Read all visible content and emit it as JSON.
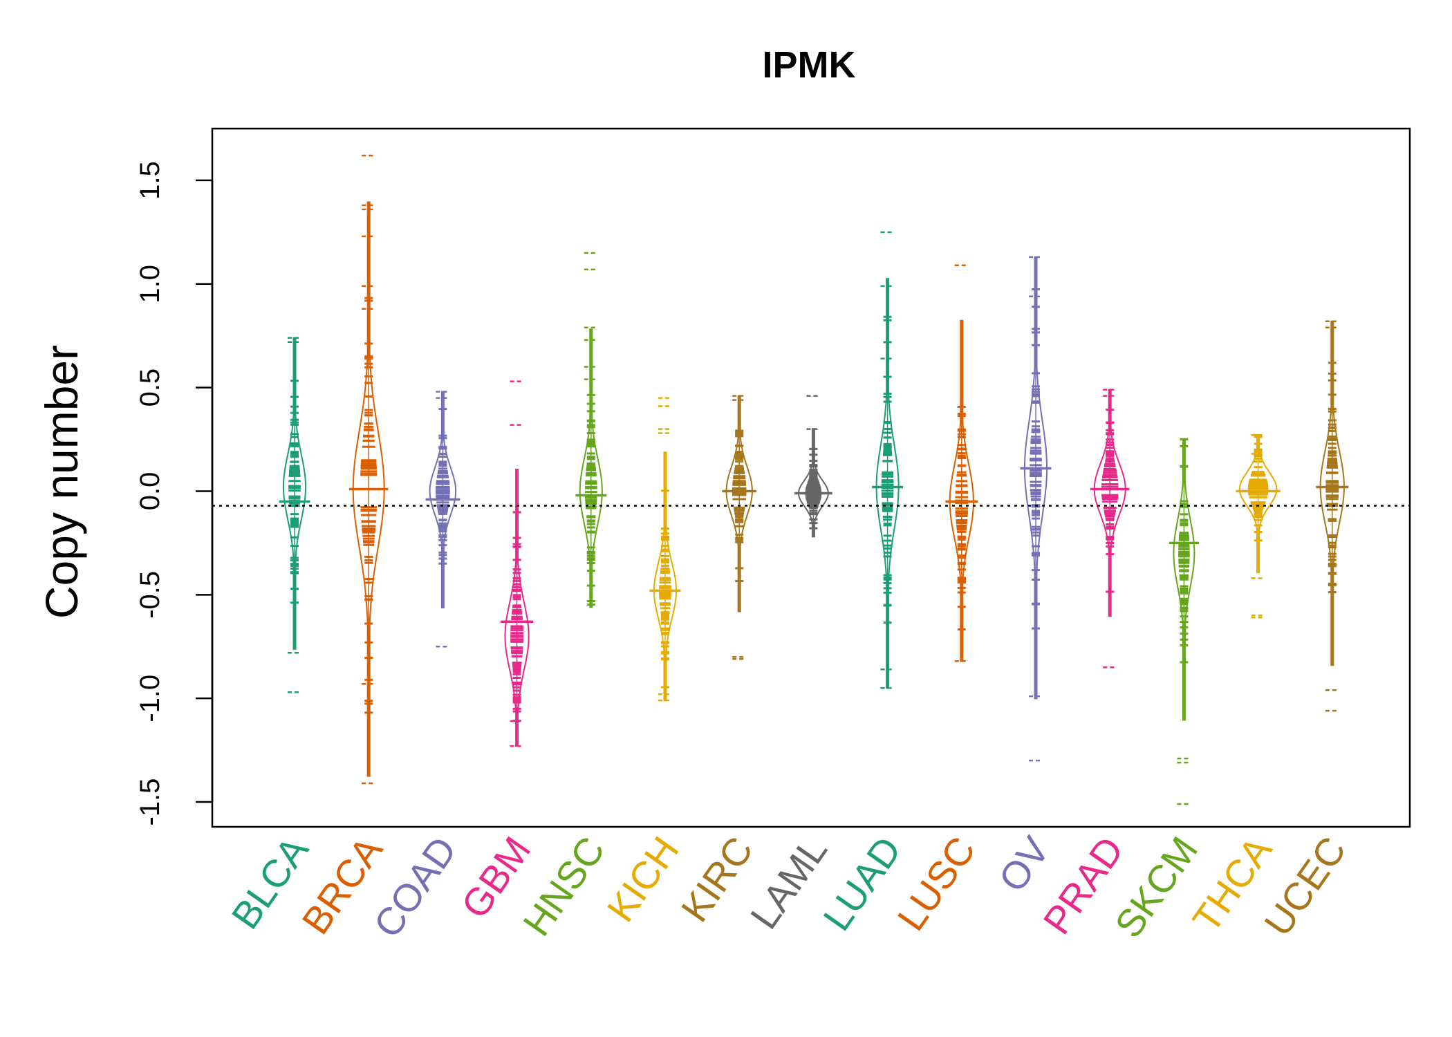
{
  "chart_data": {
    "type": "beanplot",
    "title": "IPMK",
    "xlabel": "",
    "ylabel": "Copy number",
    "ylim": [
      -1.62,
      1.75
    ],
    "yticks": [
      "-1.5",
      "-1.0",
      "-0.5",
      "0.0",
      "0.5",
      "1.0",
      "1.5"
    ],
    "ytick_values": [
      -1.5,
      -1.0,
      -0.5,
      0.0,
      0.5,
      1.0,
      1.5
    ],
    "reference_line": -0.07,
    "legend": "none",
    "grid": false,
    "categories": [
      "BLCA",
      "BRCA",
      "COAD",
      "GBM",
      "HNSC",
      "KICH",
      "KIRC",
      "LAML",
      "LUAD",
      "LUSC",
      "OV",
      "PRAD",
      "SKCM",
      "THCA",
      "UCEC"
    ],
    "colors": [
      "#1B9E77",
      "#D95F02",
      "#7570B3",
      "#E7298A",
      "#66A61E",
      "#E6AB02",
      "#A6761D",
      "#666666",
      "#1B9E77",
      "#D95F02",
      "#7570B3",
      "#E7298A",
      "#66A61E",
      "#E6AB02",
      "#A6761D"
    ],
    "series": [
      {
        "name": "BLCA",
        "min": -0.97,
        "max": 0.74,
        "median": -0.05,
        "mode": 0.02,
        "width": 0.3,
        "outliers": [
          0.72,
          0.74,
          -0.78,
          -0.97
        ]
      },
      {
        "name": "BRCA",
        "min": -1.41,
        "max": 1.62,
        "median": 0.01,
        "mode": 0.01,
        "width": 0.42,
        "outliers": [
          1.62,
          1.38,
          1.36,
          1.23,
          0.99,
          0.88,
          -0.93,
          -1.41
        ]
      },
      {
        "name": "COAD",
        "min": -0.75,
        "max": 0.48,
        "median": -0.04,
        "mode": 0.0,
        "width": 0.35,
        "outliers": [
          0.48,
          0.45,
          -0.75
        ]
      },
      {
        "name": "GBM",
        "min": -1.23,
        "max": 0.53,
        "median": -0.63,
        "mode": -0.7,
        "width": 0.32,
        "outliers": [
          0.53,
          0.32,
          -1.23,
          -1.11
        ]
      },
      {
        "name": "HNSC",
        "min": -0.56,
        "max": 1.15,
        "median": -0.02,
        "mode": 0.0,
        "width": 0.3,
        "outliers": [
          1.15,
          1.07,
          0.79,
          0.73,
          0.6,
          0.54
        ]
      },
      {
        "name": "KICH",
        "min": -1.01,
        "max": 0.45,
        "median": -0.48,
        "mode": -0.48,
        "width": 0.3,
        "outliers": [
          0.45,
          0.41,
          0.3,
          0.28,
          -0.98,
          -1.01
        ]
      },
      {
        "name": "KIRC",
        "min": -0.81,
        "max": 0.46,
        "median": 0.0,
        "mode": 0.0,
        "width": 0.35,
        "outliers": [
          0.46,
          0.44,
          -0.8,
          -0.81
        ]
      },
      {
        "name": "LAML",
        "min": -0.22,
        "max": 0.46,
        "median": -0.01,
        "mode": -0.01,
        "width": 0.4,
        "outliers": [
          0.46,
          0.3
        ]
      },
      {
        "name": "LUAD",
        "min": -0.95,
        "max": 1.25,
        "median": 0.02,
        "mode": 0.02,
        "width": 0.3,
        "outliers": [
          1.25,
          0.99,
          0.64,
          -0.86,
          -0.95
        ]
      },
      {
        "name": "LUSC",
        "min": -0.82,
        "max": 1.09,
        "median": -0.05,
        "mode": -0.05,
        "width": 0.32,
        "outliers": [
          1.09,
          -0.82
        ]
      },
      {
        "name": "OV",
        "min": -1.3,
        "max": 1.13,
        "median": 0.11,
        "mode": 0.11,
        "width": 0.3,
        "outliers": [
          1.13,
          0.94,
          -0.99,
          -1.3
        ]
      },
      {
        "name": "PRAD",
        "min": -0.85,
        "max": 0.49,
        "median": 0.01,
        "mode": 0.01,
        "width": 0.42,
        "outliers": [
          0.49,
          0.46,
          -0.85
        ]
      },
      {
        "name": "SKCM",
        "min": -1.51,
        "max": 0.25,
        "median": -0.25,
        "mode": -0.3,
        "width": 0.28,
        "outliers": [
          -1.29,
          -1.31,
          -1.51
        ]
      },
      {
        "name": "THCA",
        "min": -0.61,
        "max": 0.27,
        "median": 0.0,
        "mode": 0.01,
        "width": 0.5,
        "outliers": [
          0.27,
          0.18,
          -0.6,
          -0.61,
          -0.42
        ]
      },
      {
        "name": "UCEC",
        "min": -1.06,
        "max": 0.82,
        "median": 0.02,
        "mode": 0.02,
        "width": 0.32,
        "outliers": [
          0.82,
          0.79,
          -0.96,
          -1.06
        ]
      }
    ]
  }
}
